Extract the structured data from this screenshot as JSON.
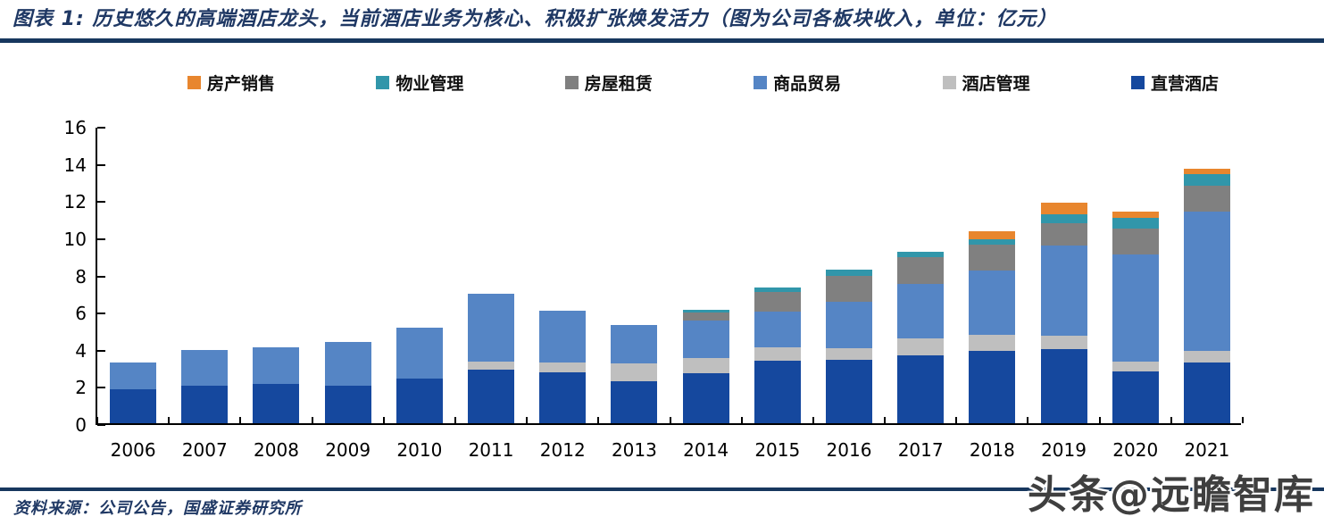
{
  "header": {
    "title": "图表 1:  历史悠久的高端酒店龙头，当前酒店业务为核心、积极扩张焕发活力（图为公司各板块收入，单位：亿元）"
  },
  "footer": {
    "source": "资料来源：公司公告，国盛证券研究所",
    "watermark": "头条@远瞻智库"
  },
  "colors": {
    "rule": "#17375E",
    "title_text": "#1F3864",
    "axis": "#000000"
  },
  "chart_data": {
    "type": "bar",
    "stacked": true,
    "unit": "亿元",
    "title": "公司各板块收入（亿元）",
    "xlabel": "",
    "ylabel": "",
    "ylim": [
      0,
      16
    ],
    "ytick_step": 2,
    "grid": false,
    "legend_position": "top",
    "categories": [
      "2006",
      "2007",
      "2008",
      "2009",
      "2010",
      "2011",
      "2012",
      "2013",
      "2014",
      "2015",
      "2016",
      "2017",
      "2018",
      "2019",
      "2020",
      "2021"
    ],
    "series": [
      {
        "name": "直营酒店",
        "color": "#15489E",
        "values": [
          1.85,
          2.0,
          2.1,
          2.0,
          2.4,
          2.9,
          2.75,
          2.25,
          2.7,
          3.35,
          3.4,
          3.65,
          3.9,
          4.0,
          2.8,
          3.25
        ]
      },
      {
        "name": "酒店管理",
        "color": "#BFBFBF",
        "values": [
          0,
          0,
          0,
          0,
          0,
          0.4,
          0.5,
          0.95,
          0.8,
          0.75,
          0.65,
          0.9,
          0.85,
          0.7,
          0.5,
          0.65
        ]
      },
      {
        "name": "商品贸易",
        "color": "#5585C5",
        "values": [
          1.4,
          1.95,
          2.0,
          2.35,
          2.75,
          3.65,
          2.8,
          2.1,
          2.05,
          1.9,
          2.5,
          2.95,
          3.45,
          4.85,
          5.8,
          7.5
        ]
      },
      {
        "name": "房屋租赁",
        "color": "#808080",
        "values": [
          0,
          0,
          0,
          0,
          0,
          0,
          0,
          0,
          0.4,
          1.05,
          1.4,
          1.45,
          1.4,
          1.2,
          1.4,
          1.4
        ]
      },
      {
        "name": "物业管理",
        "color": "#3196AA",
        "values": [
          0,
          0,
          0,
          0,
          0,
          0,
          0,
          0,
          0.15,
          0.25,
          0.3,
          0.3,
          0.3,
          0.5,
          0.55,
          0.6
        ]
      },
      {
        "name": "房产销售",
        "color": "#E8862E",
        "values": [
          0,
          0,
          0,
          0,
          0,
          0,
          0,
          0,
          0,
          0,
          0,
          0,
          0.45,
          0.6,
          0.35,
          0.3
        ]
      }
    ],
    "legend_order": [
      "房产销售",
      "物业管理",
      "房屋租赁",
      "商品贸易",
      "酒店管理",
      "直营酒店"
    ]
  }
}
